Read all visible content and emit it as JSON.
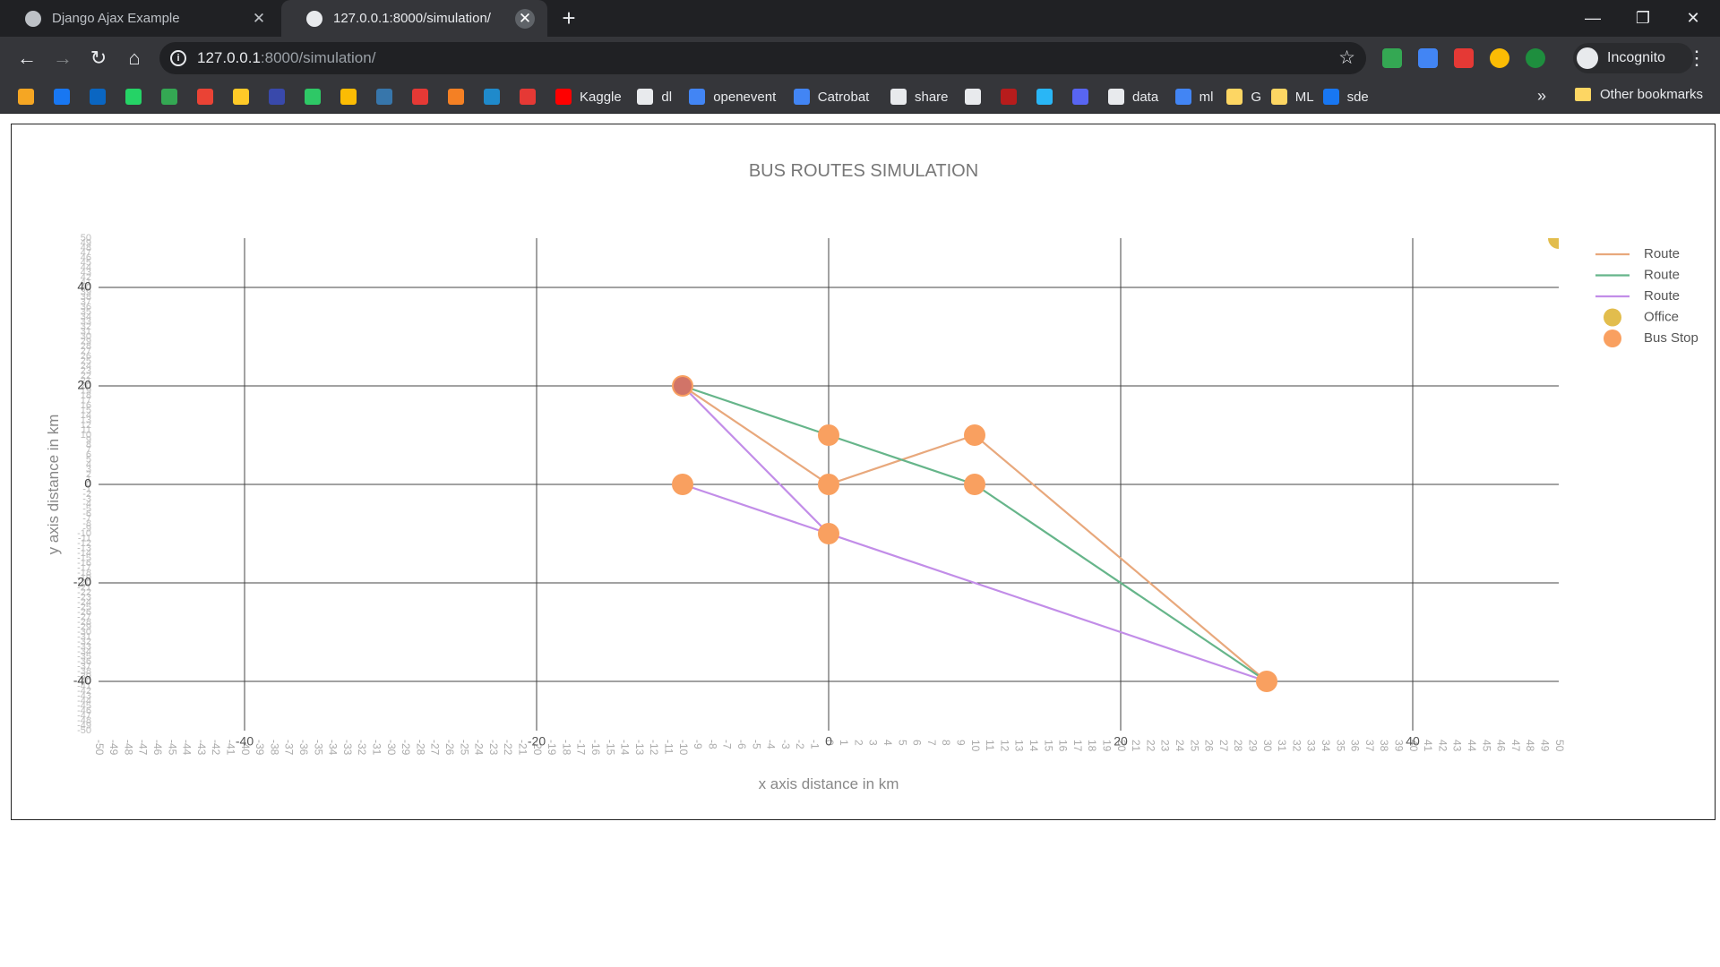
{
  "browser": {
    "tabs": [
      {
        "title": "Django Ajax Example",
        "active": false
      },
      {
        "title": "127.0.0.1:8000/simulation/",
        "active": true
      }
    ],
    "url_host": "127.0.0.1",
    "url_rest": ":8000/simulation/",
    "profile_label": "Incognito",
    "bookmarks": [
      {
        "label": "",
        "icon": "hourglass-icon",
        "color": "#f5a623"
      },
      {
        "label": "",
        "icon": "facebook-icon",
        "color": "#1877f2"
      },
      {
        "label": "",
        "icon": "linkedin-icon",
        "color": "#0a66c2"
      },
      {
        "label": "",
        "icon": "whatsapp-icon",
        "color": "#25d366"
      },
      {
        "label": "",
        "icon": "drive-icon",
        "color": "#34a853"
      },
      {
        "label": "",
        "icon": "gmail-icon",
        "color": "#ea4335"
      },
      {
        "label": "",
        "icon": "firebase-icon",
        "color": "#ffca28"
      },
      {
        "label": "",
        "icon": "globe-icon",
        "color": "#3949ab"
      },
      {
        "label": "",
        "icon": "hackerrank-icon",
        "color": "#2ec866"
      },
      {
        "label": "",
        "icon": "keep-icon",
        "color": "#fbbc04"
      },
      {
        "label": "",
        "icon": "python-icon",
        "color": "#3776ab"
      },
      {
        "label": "",
        "icon": "opsgenie-icon",
        "color": "#e53935"
      },
      {
        "label": "",
        "icon": "stackoverflow-icon",
        "color": "#f48024"
      },
      {
        "label": "",
        "icon": "codeforces-icon",
        "color": "#1f8acb"
      },
      {
        "label": "",
        "icon": "k-icon",
        "color": "#e53935"
      },
      {
        "label": "Kaggle",
        "icon": "youtube-icon",
        "color": "#ff0000"
      },
      {
        "label": "dl",
        "icon": "github-icon",
        "color": "#e8eaed"
      },
      {
        "label": "openevent",
        "icon": "docs-icon",
        "color": "#4285f4"
      },
      {
        "label": "Catrobat",
        "icon": "docs-icon",
        "color": "#4285f4"
      },
      {
        "label": "share",
        "icon": "github-icon",
        "color": "#e8eaed"
      },
      {
        "label": "",
        "icon": "stamp-icon",
        "color": "#e8eaed"
      },
      {
        "label": "",
        "icon": "target-icon",
        "color": "#b71c1c"
      },
      {
        "label": "",
        "icon": "compass-icon",
        "color": "#29b6f6"
      },
      {
        "label": "",
        "icon": "discord-icon",
        "color": "#5865f2"
      },
      {
        "label": "data",
        "icon": "globe-icon",
        "color": "#e8eaed"
      },
      {
        "label": "ml",
        "icon": "window-icon",
        "color": "#4285f4"
      },
      {
        "label": "G",
        "icon": "folder-icon",
        "color": "#fdd663"
      },
      {
        "label": "ML",
        "icon": "folder-icon",
        "color": "#fdd663"
      },
      {
        "label": "sde",
        "icon": "facebook-icon",
        "color": "#1877f2"
      }
    ],
    "bookmarks_more": "»",
    "other_bookmarks": "Other bookmarks"
  },
  "chart_data": {
    "type": "scatter",
    "title": "BUS ROUTES SIMULATION",
    "xlabel": "x axis distance in km",
    "ylabel": "y axis distance in km",
    "xlim": [
      -50,
      50
    ],
    "ylim": [
      -50,
      50
    ],
    "x_major_ticks": [
      -40,
      -20,
      0,
      20,
      40
    ],
    "y_major_ticks": [
      -40,
      -20,
      0,
      20,
      40
    ],
    "minor_tick_step": 1,
    "grid": true,
    "legend_position": "right",
    "series": [
      {
        "name": "Route",
        "mode": "lines",
        "color": "#e8a87c",
        "x": [
          -10,
          0,
          10,
          30
        ],
        "y": [
          20,
          0,
          10,
          -40
        ]
      },
      {
        "name": "Route",
        "mode": "lines",
        "color": "#66b58a",
        "x": [
          -10,
          0,
          10,
          30
        ],
        "y": [
          20,
          10,
          0,
          -40
        ]
      },
      {
        "name": "Route",
        "mode": "lines",
        "color": "#c28de8",
        "x": [
          -10,
          0,
          30
        ],
        "y": [
          20,
          -10,
          -40
        ]
      },
      {
        "name": "Route",
        "mode": "lines",
        "color": "#c28de8",
        "x": [
          -10,
          0
        ],
        "y": [
          0,
          -10
        ]
      },
      {
        "name": "Office",
        "mode": "markers",
        "color": "#e2bd4d",
        "x": [
          50
        ],
        "y": [
          50
        ]
      },
      {
        "name": "Bus Stop",
        "mode": "markers",
        "color": "#f9a060",
        "x": [
          -10,
          0,
          0,
          10,
          10,
          -10,
          0,
          30
        ],
        "y": [
          20,
          10,
          0,
          10,
          0,
          0,
          -10,
          -40
        ]
      }
    ],
    "legend": [
      "Route",
      "Route",
      "Route",
      "Office",
      "Bus Stop"
    ]
  }
}
